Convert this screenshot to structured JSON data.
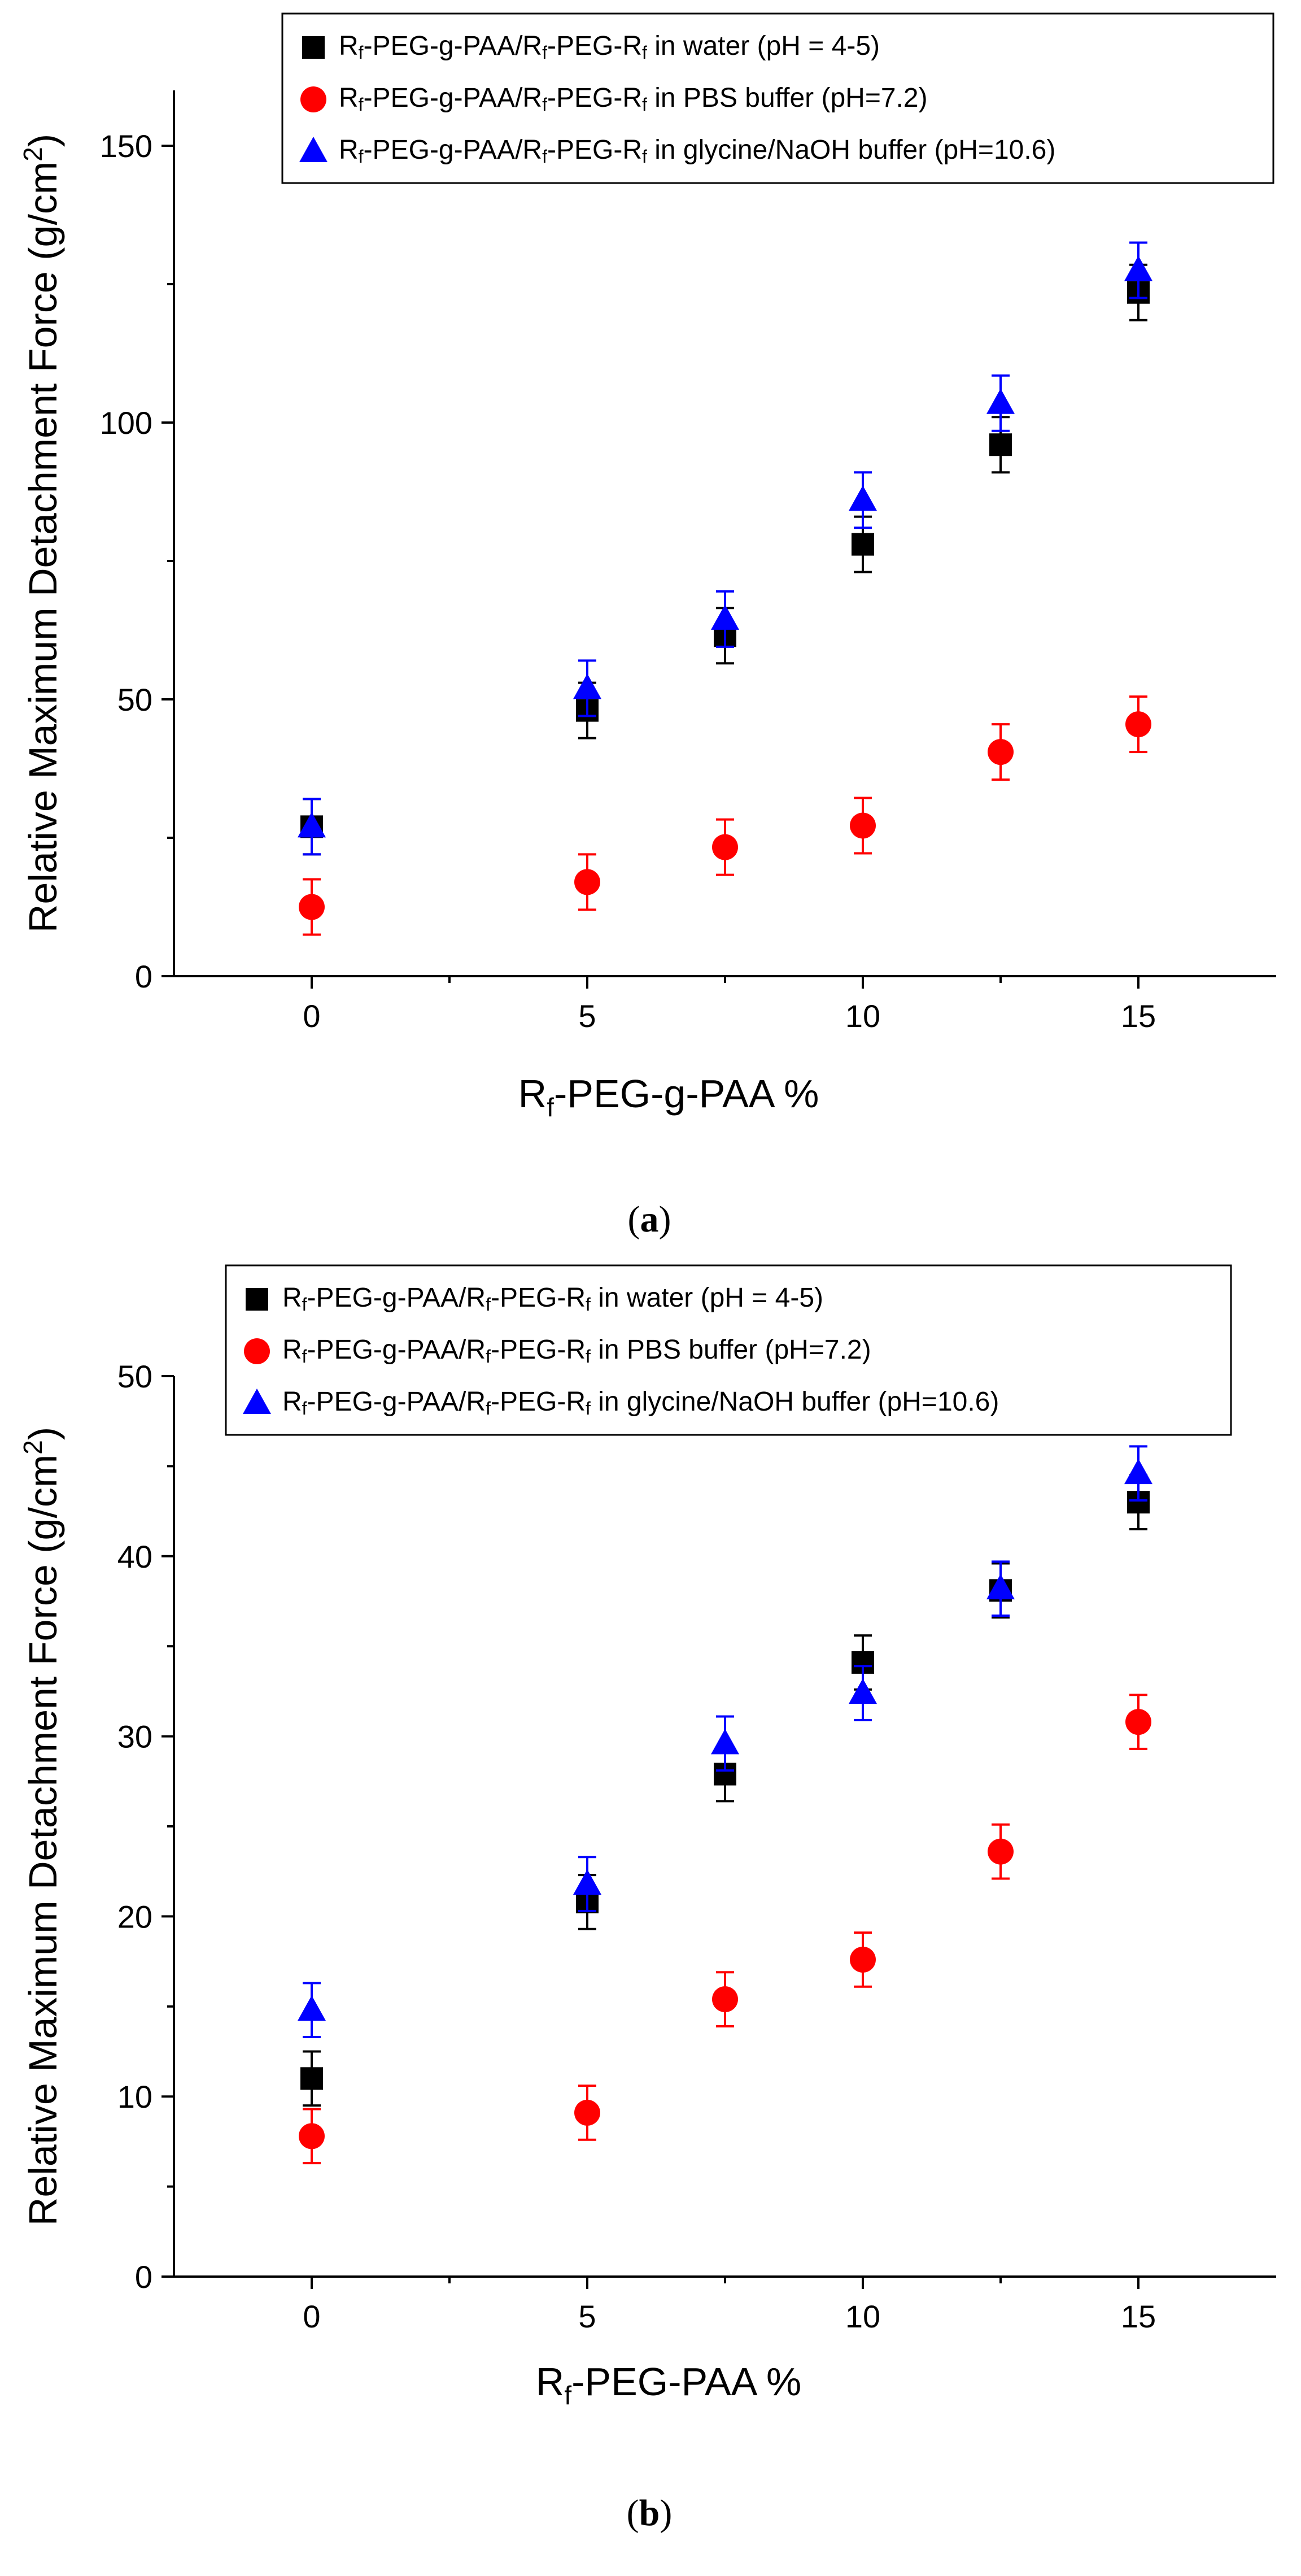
{
  "chart_data": [
    {
      "type": "scatter",
      "panel_label": "a",
      "xlabel": "Rf-PEG-g-PAA %",
      "xlabel_parts": {
        "base": "R",
        "sub": "f",
        "rest": "-PEG-g-PAA %"
      },
      "ylabel": "Relative Maximum Detachment Force (g/cm2)",
      "ylabel_parts": {
        "main": "Relative Maximum Detachment Force (g/cm",
        "sup": "2",
        "end": ")"
      },
      "xlim": [
        -2.5,
        17.5
      ],
      "ylim": [
        0,
        160
      ],
      "xticks": [
        0,
        5,
        10,
        15
      ],
      "yticks": [
        0,
        50,
        100,
        150
      ],
      "grid": false,
      "legend_position": "top-right",
      "series": [
        {
          "name": "Rf-PEG-g-PAA/Rf-PEG-Rf in water (pH = 4-5)",
          "condition": "in water (pH = 4-5)",
          "color": "#000000",
          "marker": "square",
          "x": [
            0,
            5,
            7.5,
            10,
            12.5,
            15
          ],
          "y": [
            27,
            48,
            61.5,
            78,
            96,
            123.5
          ],
          "err": [
            5,
            5,
            5,
            5,
            5,
            5
          ]
        },
        {
          "name": "Rf-PEG-g-PAA/Rf-PEG-Rf in PBS buffer (pH=7.2)",
          "condition": "in PBS buffer (pH=7.2)",
          "color": "#ff0000",
          "marker": "circle",
          "x": [
            0,
            5,
            7.5,
            10,
            12.5,
            15
          ],
          "y": [
            12.5,
            17,
            23.3,
            27.2,
            40.5,
            45.5
          ],
          "err": [
            5,
            5,
            5,
            5,
            5,
            5
          ]
        },
        {
          "name": "Rf-PEG-g-PAA/Rf-PEG-Rf in glycine/NaOH buffer (pH=10.6)",
          "condition": "in glycine/NaOH buffer (pH=10.6)",
          "color": "#0000ff",
          "marker": "triangle",
          "x": [
            0,
            5,
            7.5,
            10,
            12.5,
            15
          ],
          "y": [
            27,
            52,
            64.5,
            86,
            103.5,
            127.5
          ],
          "err": [
            5,
            5,
            5,
            5,
            5,
            5
          ]
        }
      ]
    },
    {
      "type": "scatter",
      "panel_label": "b",
      "xlabel": "Rf-PEG-PAA %",
      "xlabel_parts": {
        "base": "R",
        "sub": "f",
        "rest": "-PEG-PAA %"
      },
      "ylabel": "Relative Maximum Detachment Force (g/cm2)",
      "ylabel_parts": {
        "main": "Relative Maximum Detachment Force (g/cm",
        "sup": "2",
        "end": ")"
      },
      "xlim": [
        -2.5,
        17.5
      ],
      "ylim": [
        0,
        50
      ],
      "xticks": [
        0,
        5,
        10,
        15
      ],
      "yticks": [
        0,
        10,
        20,
        30,
        40,
        50
      ],
      "grid": false,
      "legend_position": "top-left",
      "series": [
        {
          "name": "Rf-PEG-g-PAA/Rf-PEG-Rf in water (pH = 4-5)",
          "condition": "in water (pH = 4-5)",
          "color": "#000000",
          "marker": "square",
          "x": [
            0,
            5,
            7.5,
            10,
            12.5,
            15
          ],
          "y": [
            11,
            20.8,
            27.9,
            34.1,
            38.1,
            43
          ],
          "err": [
            1.5,
            1.5,
            1.5,
            1.5,
            1.5,
            1.5
          ]
        },
        {
          "name": "Rf-PEG-g-PAA/Rf-PEG-Rf in PBS buffer (pH=7.2)",
          "condition": "in PBS buffer (pH=7.2)",
          "color": "#ff0000",
          "marker": "circle",
          "x": [
            0,
            5,
            7.5,
            10,
            12.5,
            15
          ],
          "y": [
            7.8,
            9.1,
            15.4,
            17.6,
            23.6,
            30.8
          ],
          "err": [
            1.5,
            1.5,
            1.5,
            1.5,
            1.5,
            1.5
          ]
        },
        {
          "name": "Rf-PEG-g-PAA/Rf-PEG-Rf in glycine/NaOH buffer (pH=10.6)",
          "condition": "in glycine/NaOH buffer (pH=10.6)",
          "color": "#0000ff",
          "marker": "triangle",
          "x": [
            0,
            5,
            7.5,
            10,
            12.5,
            15
          ],
          "y": [
            14.8,
            21.8,
            29.6,
            32.4,
            38.2,
            44.6
          ],
          "err": [
            1.5,
            1.5,
            1.5,
            1.5,
            1.5,
            1.5
          ]
        }
      ]
    }
  ],
  "legend_prefix": {
    "r": "R",
    "f": "f",
    "peg_g_paa": "-PEG-g-PAA/",
    "peg": "-PEG-"
  }
}
